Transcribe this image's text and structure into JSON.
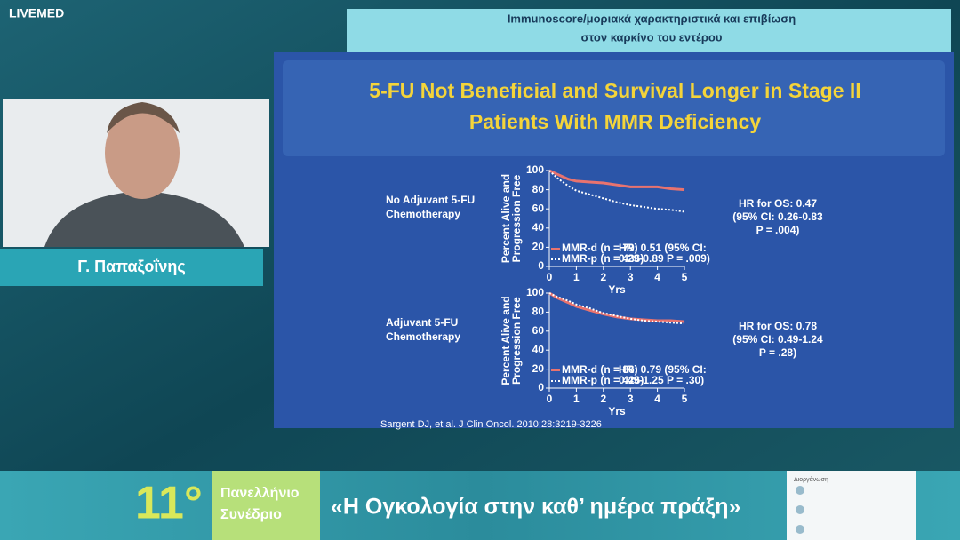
{
  "header": {
    "brand": "LIVEMED",
    "topic": [
      "Immunoscore/μοριακά χαρακτηριστικά και επιβίωση",
      "στον καρκίνο του εντέρου"
    ]
  },
  "speaker": {
    "name": "Γ. Παπαξοΐνης"
  },
  "slide": {
    "title": [
      "5-FU Not Beneficial and Survival Longer in Stage II",
      "Patients With MMR Deficiency"
    ],
    "charts": [
      {
        "type": "line",
        "group": [
          "No Adjuvant 5-FU",
          "Chemotherapy"
        ],
        "y_label": [
          "Percent Alive and",
          "Progression Free"
        ],
        "x_label": "Yrs",
        "x": [
          0,
          0.3,
          0.7,
          1,
          1.5,
          2,
          2.5,
          3,
          3.5,
          4,
          4.5,
          5
        ],
        "xlim": [
          0,
          5
        ],
        "xticks": [
          0,
          1,
          2,
          3,
          4,
          5
        ],
        "ylim": [
          0,
          100
        ],
        "yticks": [
          0,
          20,
          40,
          60,
          80,
          100
        ],
        "series": [
          {
            "name": "MMR-d (n = 79)",
            "color": "#e8736f",
            "values": [
              100,
              96,
              91,
              89,
              88,
              87,
              85,
              83,
              83,
              83,
              81,
              80
            ]
          },
          {
            "name": "MMR-p (n = 436)",
            "color": "#ffffff",
            "values": [
              100,
              92,
              84,
              79,
              75,
              71,
              67,
              64,
              62,
              60,
              59,
              57
            ]
          }
        ],
        "annotation": [
          "HR: 0.51 (95% CI:",
          "0.29-0.89 P = .009)"
        ],
        "os": [
          "HR for OS: 0.47",
          "(95% CI: 0.26-0.83",
          "P = .004)"
        ]
      },
      {
        "type": "line",
        "group": [
          "Adjuvant 5-FU",
          "Chemotherapy"
        ],
        "y_label": [
          "Percent Alive and",
          "Progression Free"
        ],
        "x_label": "Yrs",
        "x": [
          0,
          0.3,
          0.7,
          1,
          1.5,
          2,
          2.5,
          3,
          3.5,
          4,
          4.5,
          5
        ],
        "xlim": [
          0,
          5
        ],
        "xticks": [
          0,
          1,
          2,
          3,
          4,
          5
        ],
        "ylim": [
          0,
          100
        ],
        "yticks": [
          0,
          20,
          40,
          60,
          80,
          100
        ],
        "series": [
          {
            "name": "MMR-d (n = 86)",
            "color": "#e8736f",
            "values": [
              100,
              95,
              90,
              86,
              82,
              78,
              75,
              73,
              72,
              71,
              71,
              70
            ]
          },
          {
            "name": "MMR-p (n = 426)",
            "color": "#ffffff",
            "values": [
              100,
              96,
              92,
              88,
              84,
              79,
              76,
              73,
              71,
              70,
              69,
              68
            ]
          }
        ],
        "annotation": [
          "HR: 0.79 (95% CI:",
          "0.49-1.25 P = .30)"
        ],
        "os": [
          "HR for OS: 0.78",
          "(95% CI: 0.49-1.24",
          "P = .28)"
        ]
      }
    ],
    "citation": "Sargent DJ, et al. J Clin Oncol. 2010;28:3219-3226"
  },
  "banner": {
    "edition": "11°",
    "subtitle": [
      "Πανελλήνιο",
      "Συνέδριο"
    ],
    "motto": "«Η Ογκολογία στην καθ’ ημέρα πράξη»",
    "sponsors_label": "Διοργάνωση"
  }
}
